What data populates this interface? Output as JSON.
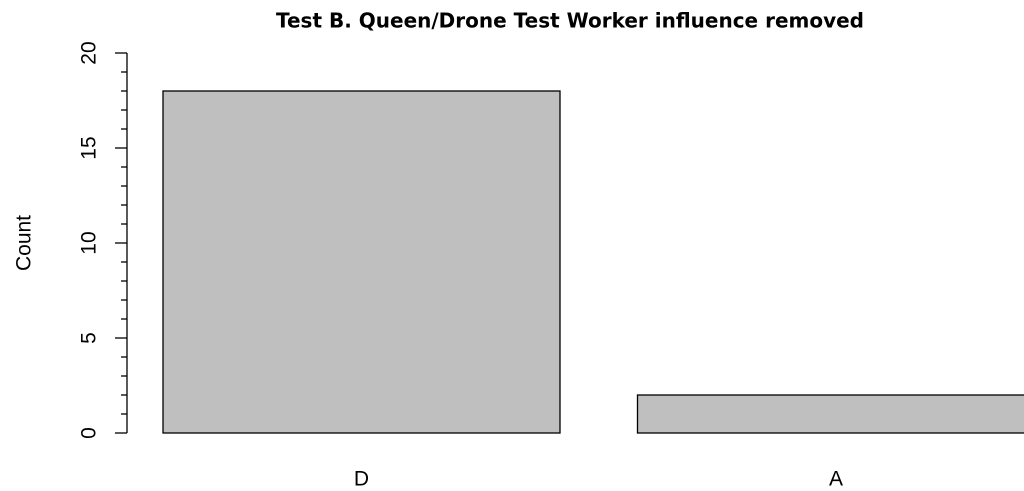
{
  "chart_data": {
    "type": "bar",
    "title": "Test B. Queen/Drone Test Worker influence removed",
    "y_label": "Count",
    "categories": [
      "D",
      "A"
    ],
    "values": [
      18,
      2
    ],
    "color": "#bfbfbf",
    "ylim": [
      0,
      20
    ],
    "yticks": [
      0,
      5,
      10,
      15,
      20
    ],
    "yminor_ticks": [
      1,
      2,
      3,
      4,
      6,
      7,
      8,
      9,
      11,
      12,
      13,
      14,
      16,
      17,
      18,
      19
    ]
  }
}
